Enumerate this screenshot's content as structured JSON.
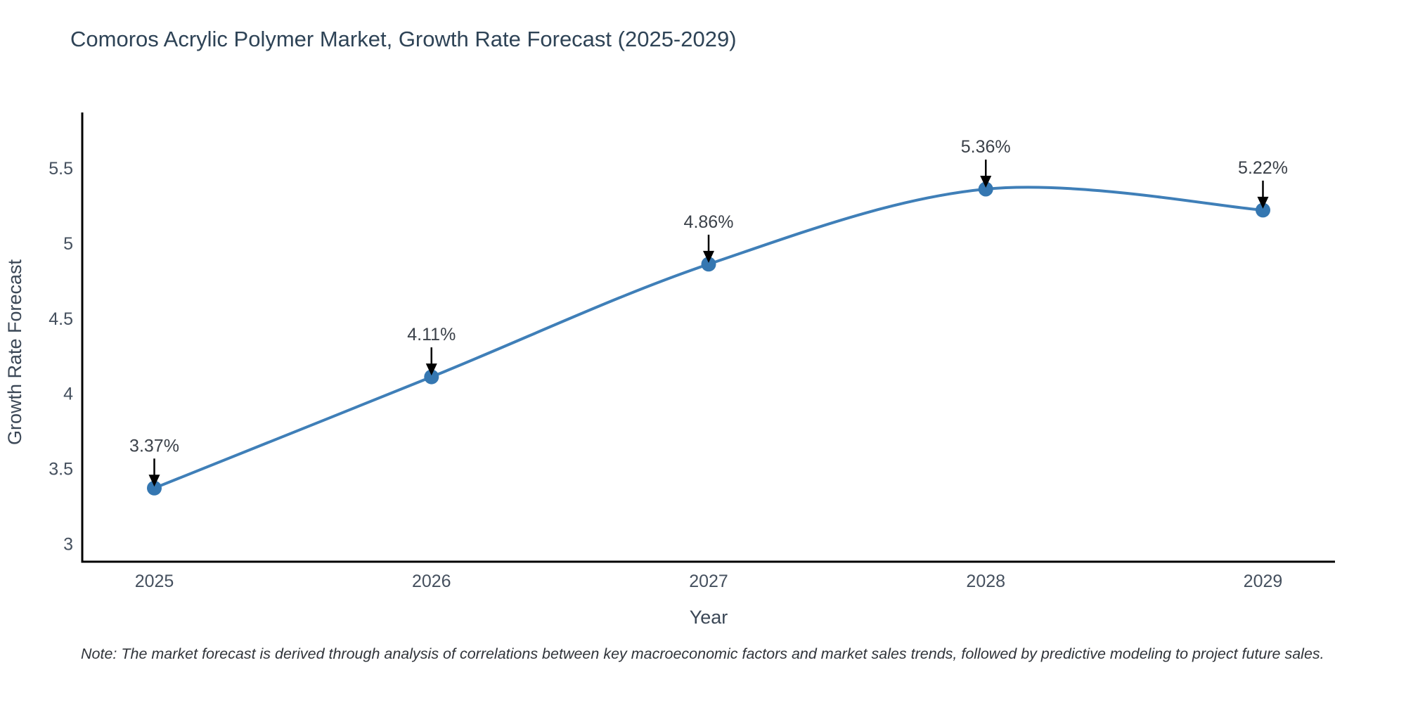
{
  "title": "Comoros Acrylic Polymer Market, Growth Rate Forecast (2025-2029)",
  "note": "Note: The market forecast is derived through analysis of correlations between key macroeconomic factors and market sales trends, followed by predictive modeling to project future sales.",
  "chart_data": {
    "type": "line",
    "line_shape": "spline",
    "x": [
      2025,
      2026,
      2027,
      2028,
      2029
    ],
    "values": [
      3.37,
      4.11,
      4.86,
      5.36,
      5.22
    ],
    "point_labels": [
      "3.37%",
      "4.11%",
      "4.86%",
      "5.36%",
      "5.22%"
    ],
    "title": "Comoros Acrylic Polymer Market, Growth Rate Forecast (2025-2029)",
    "xlabel": "Year",
    "ylabel": "Growth Rate Forecast",
    "xticks": [
      2025,
      2026,
      2027,
      2028,
      2029
    ],
    "yticks": [
      3,
      3.5,
      4,
      4.5,
      5,
      5.5
    ],
    "xlim": [
      2024.74,
      2029.26
    ],
    "ylim": [
      2.88,
      5.87
    ],
    "grid": false,
    "legend": "none",
    "annotations_arrow": true,
    "colors": {
      "line": "#3f7fb8",
      "marker": "#3577b1",
      "axis": "#000000",
      "arrow": "#000000",
      "title_text": "#2e4356",
      "tick_text": "#45505e",
      "annotation_text": "#3b4149",
      "note_text": "#30343a"
    }
  }
}
